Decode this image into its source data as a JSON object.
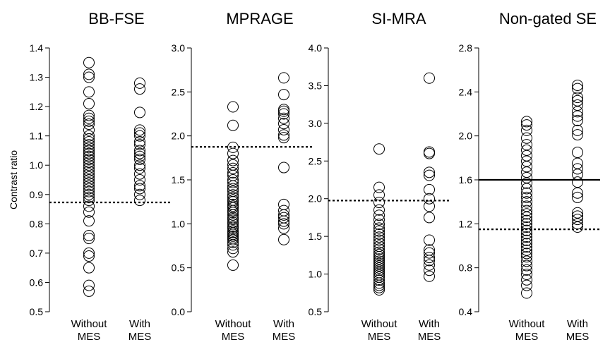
{
  "y_axis_label": "Contrast ratio",
  "chart_data": [
    {
      "type": "scatter",
      "title": "BB-FSE",
      "categories": [
        "Without\nMES",
        "With\nMES"
      ],
      "ylim": [
        0.5,
        1.4
      ],
      "yticks": [
        "0.5",
        "0.6",
        "0.7",
        "0.8",
        "0.9",
        "1.0",
        "1.1",
        "1.2",
        "1.3",
        "1.4"
      ],
      "series": [
        {
          "category": 0,
          "values": [
            1.35,
            1.31,
            1.3,
            1.25,
            1.21,
            1.17,
            1.16,
            1.15,
            1.14,
            1.12,
            1.1,
            1.09,
            1.08,
            1.07,
            1.06,
            1.05,
            1.05,
            1.04,
            1.04,
            1.03,
            1.03,
            1.02,
            1.02,
            1.01,
            1.0,
            0.99,
            0.98,
            0.97,
            0.96,
            0.95,
            0.94,
            0.93,
            0.92,
            0.91,
            0.9,
            0.89,
            0.88,
            0.86,
            0.84,
            0.81,
            0.76,
            0.75,
            0.7,
            0.69,
            0.65,
            0.59,
            0.57
          ]
        },
        {
          "category": 1,
          "values": [
            1.28,
            1.26,
            1.18,
            1.12,
            1.11,
            1.1,
            1.08,
            1.07,
            1.05,
            1.04,
            1.03,
            1.02,
            1.0,
            0.99,
            0.97,
            0.95,
            0.93,
            0.92,
            0.9,
            0.88
          ]
        }
      ],
      "reference_lines": [
        {
          "y": 0.873,
          "style": "dotted"
        }
      ]
    },
    {
      "type": "scatter",
      "title": "MPRAGE",
      "categories": [
        "Without\nMES",
        "With\nMES"
      ],
      "ylim": [
        0.0,
        3.0
      ],
      "yticks": [
        "0.0",
        "0.5",
        "1.0",
        "1.5",
        "2.0",
        "2.5",
        "3.0"
      ],
      "series": [
        {
          "category": 0,
          "values": [
            2.33,
            2.12,
            1.87,
            1.8,
            1.72,
            1.67,
            1.63,
            1.58,
            1.55,
            1.5,
            1.47,
            1.43,
            1.4,
            1.37,
            1.33,
            1.3,
            1.27,
            1.25,
            1.22,
            1.2,
            1.18,
            1.15,
            1.13,
            1.1,
            1.07,
            1.05,
            1.02,
            1.0,
            0.97,
            0.95,
            0.92,
            0.9,
            0.88,
            0.86,
            0.84,
            0.82,
            0.79,
            0.76,
            0.72,
            0.68,
            0.53
          ]
        },
        {
          "category": 1,
          "values": [
            2.66,
            2.47,
            2.3,
            2.28,
            2.25,
            2.2,
            2.14,
            2.07,
            2.01,
            1.98,
            1.64,
            1.22,
            1.15,
            1.1,
            1.07,
            1.03,
            1.0,
            0.95,
            0.82
          ]
        }
      ],
      "reference_lines": [
        {
          "y": 1.875,
          "style": "dotted"
        }
      ]
    },
    {
      "type": "scatter",
      "title": "SI-MRA",
      "categories": [
        "Without\nMES",
        "With\nMES"
      ],
      "ylim": [
        0.5,
        4.0
      ],
      "yticks": [
        "0.5",
        "1.0",
        "1.5",
        "2.0",
        "2.5",
        "3.0",
        "3.5",
        "4.0"
      ],
      "series": [
        {
          "category": 0,
          "values": [
            2.66,
            2.15,
            2.05,
            1.95,
            1.85,
            1.78,
            1.72,
            1.66,
            1.61,
            1.57,
            1.53,
            1.49,
            1.45,
            1.41,
            1.37,
            1.33,
            1.29,
            1.26,
            1.23,
            1.2,
            1.17,
            1.14,
            1.11,
            1.08,
            1.05,
            1.02,
            0.99,
            0.96,
            0.92,
            0.88,
            0.85,
            0.82,
            0.79
          ]
        },
        {
          "category": 1,
          "values": [
            3.6,
            2.62,
            2.6,
            2.35,
            2.31,
            2.12,
            2.0,
            1.9,
            1.75,
            1.45,
            1.32,
            1.28,
            1.22,
            1.18,
            1.12,
            1.05,
            0.97
          ]
        }
      ],
      "reference_lines": [
        {
          "y": 1.975,
          "style": "dotted"
        }
      ]
    },
    {
      "type": "scatter",
      "title": "Non-gated SE",
      "categories": [
        "Without\nMES",
        "With\nMES"
      ],
      "ylim": [
        0.4,
        2.8
      ],
      "yticks": [
        "0.4",
        "0.8",
        "1.2",
        "1.6",
        "2.0",
        "2.4",
        "2.8"
      ],
      "series": [
        {
          "category": 0,
          "values": [
            2.13,
            2.1,
            2.05,
            1.98,
            1.92,
            1.87,
            1.82,
            1.77,
            1.72,
            1.67,
            1.62,
            1.57,
            1.52,
            1.48,
            1.44,
            1.4,
            1.36,
            1.32,
            1.29,
            1.26,
            1.23,
            1.2,
            1.17,
            1.14,
            1.11,
            1.08,
            1.05,
            1.02,
            0.99,
            0.96,
            0.93,
            0.9,
            0.86,
            0.82,
            0.78,
            0.74,
            0.69,
            0.64,
            0.57
          ]
        },
        {
          "category": 1,
          "values": [
            2.46,
            2.43,
            2.35,
            2.32,
            2.28,
            2.22,
            2.18,
            2.14,
            2.05,
            2.01,
            1.85,
            1.75,
            1.7,
            1.65,
            1.58,
            1.48,
            1.44,
            1.3,
            1.27,
            1.24,
            1.2,
            1.17
          ]
        }
      ],
      "reference_lines": [
        {
          "y": 1.6,
          "style": "solid"
        },
        {
          "y": 1.15,
          "style": "dotted"
        }
      ]
    }
  ]
}
